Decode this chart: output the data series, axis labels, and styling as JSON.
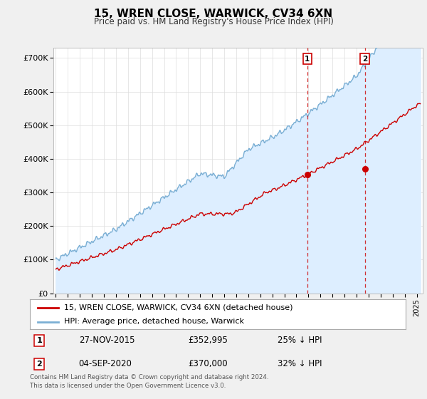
{
  "title": "15, WREN CLOSE, WARWICK, CV34 6XN",
  "subtitle": "Price paid vs. HM Land Registry's House Price Index (HPI)",
  "ylim": [
    0,
    730000
  ],
  "xlim_start": 1994.8,
  "xlim_end": 2025.5,
  "yticks": [
    0,
    100000,
    200000,
    300000,
    400000,
    500000,
    600000,
    700000
  ],
  "ytick_labels": [
    "£0",
    "£100K",
    "£200K",
    "£300K",
    "£400K",
    "£500K",
    "£600K",
    "£700K"
  ],
  "hpi_color": "#7bafd4",
  "hpi_fill_color": "#ddeeff",
  "price_color": "#cc0000",
  "marker1_date": 2015.91,
  "marker1_price": 352995,
  "marker2_date": 2020.68,
  "marker2_price": 370000,
  "legend_line1": "15, WREN CLOSE, WARWICK, CV34 6XN (detached house)",
  "legend_line2": "HPI: Average price, detached house, Warwick",
  "row1_num": "1",
  "row1_date": "27-NOV-2015",
  "row1_price": "£352,995",
  "row1_pct": "25% ↓ HPI",
  "row2_num": "2",
  "row2_date": "04-SEP-2020",
  "row2_price": "£370,000",
  "row2_pct": "32% ↓ HPI",
  "footer": "Contains HM Land Registry data © Crown copyright and database right 2024.\nThis data is licensed under the Open Government Licence v3.0.",
  "bg_color": "#f0f0f0",
  "plot_bg": "#ffffff",
  "grid_color": "#dddddd"
}
